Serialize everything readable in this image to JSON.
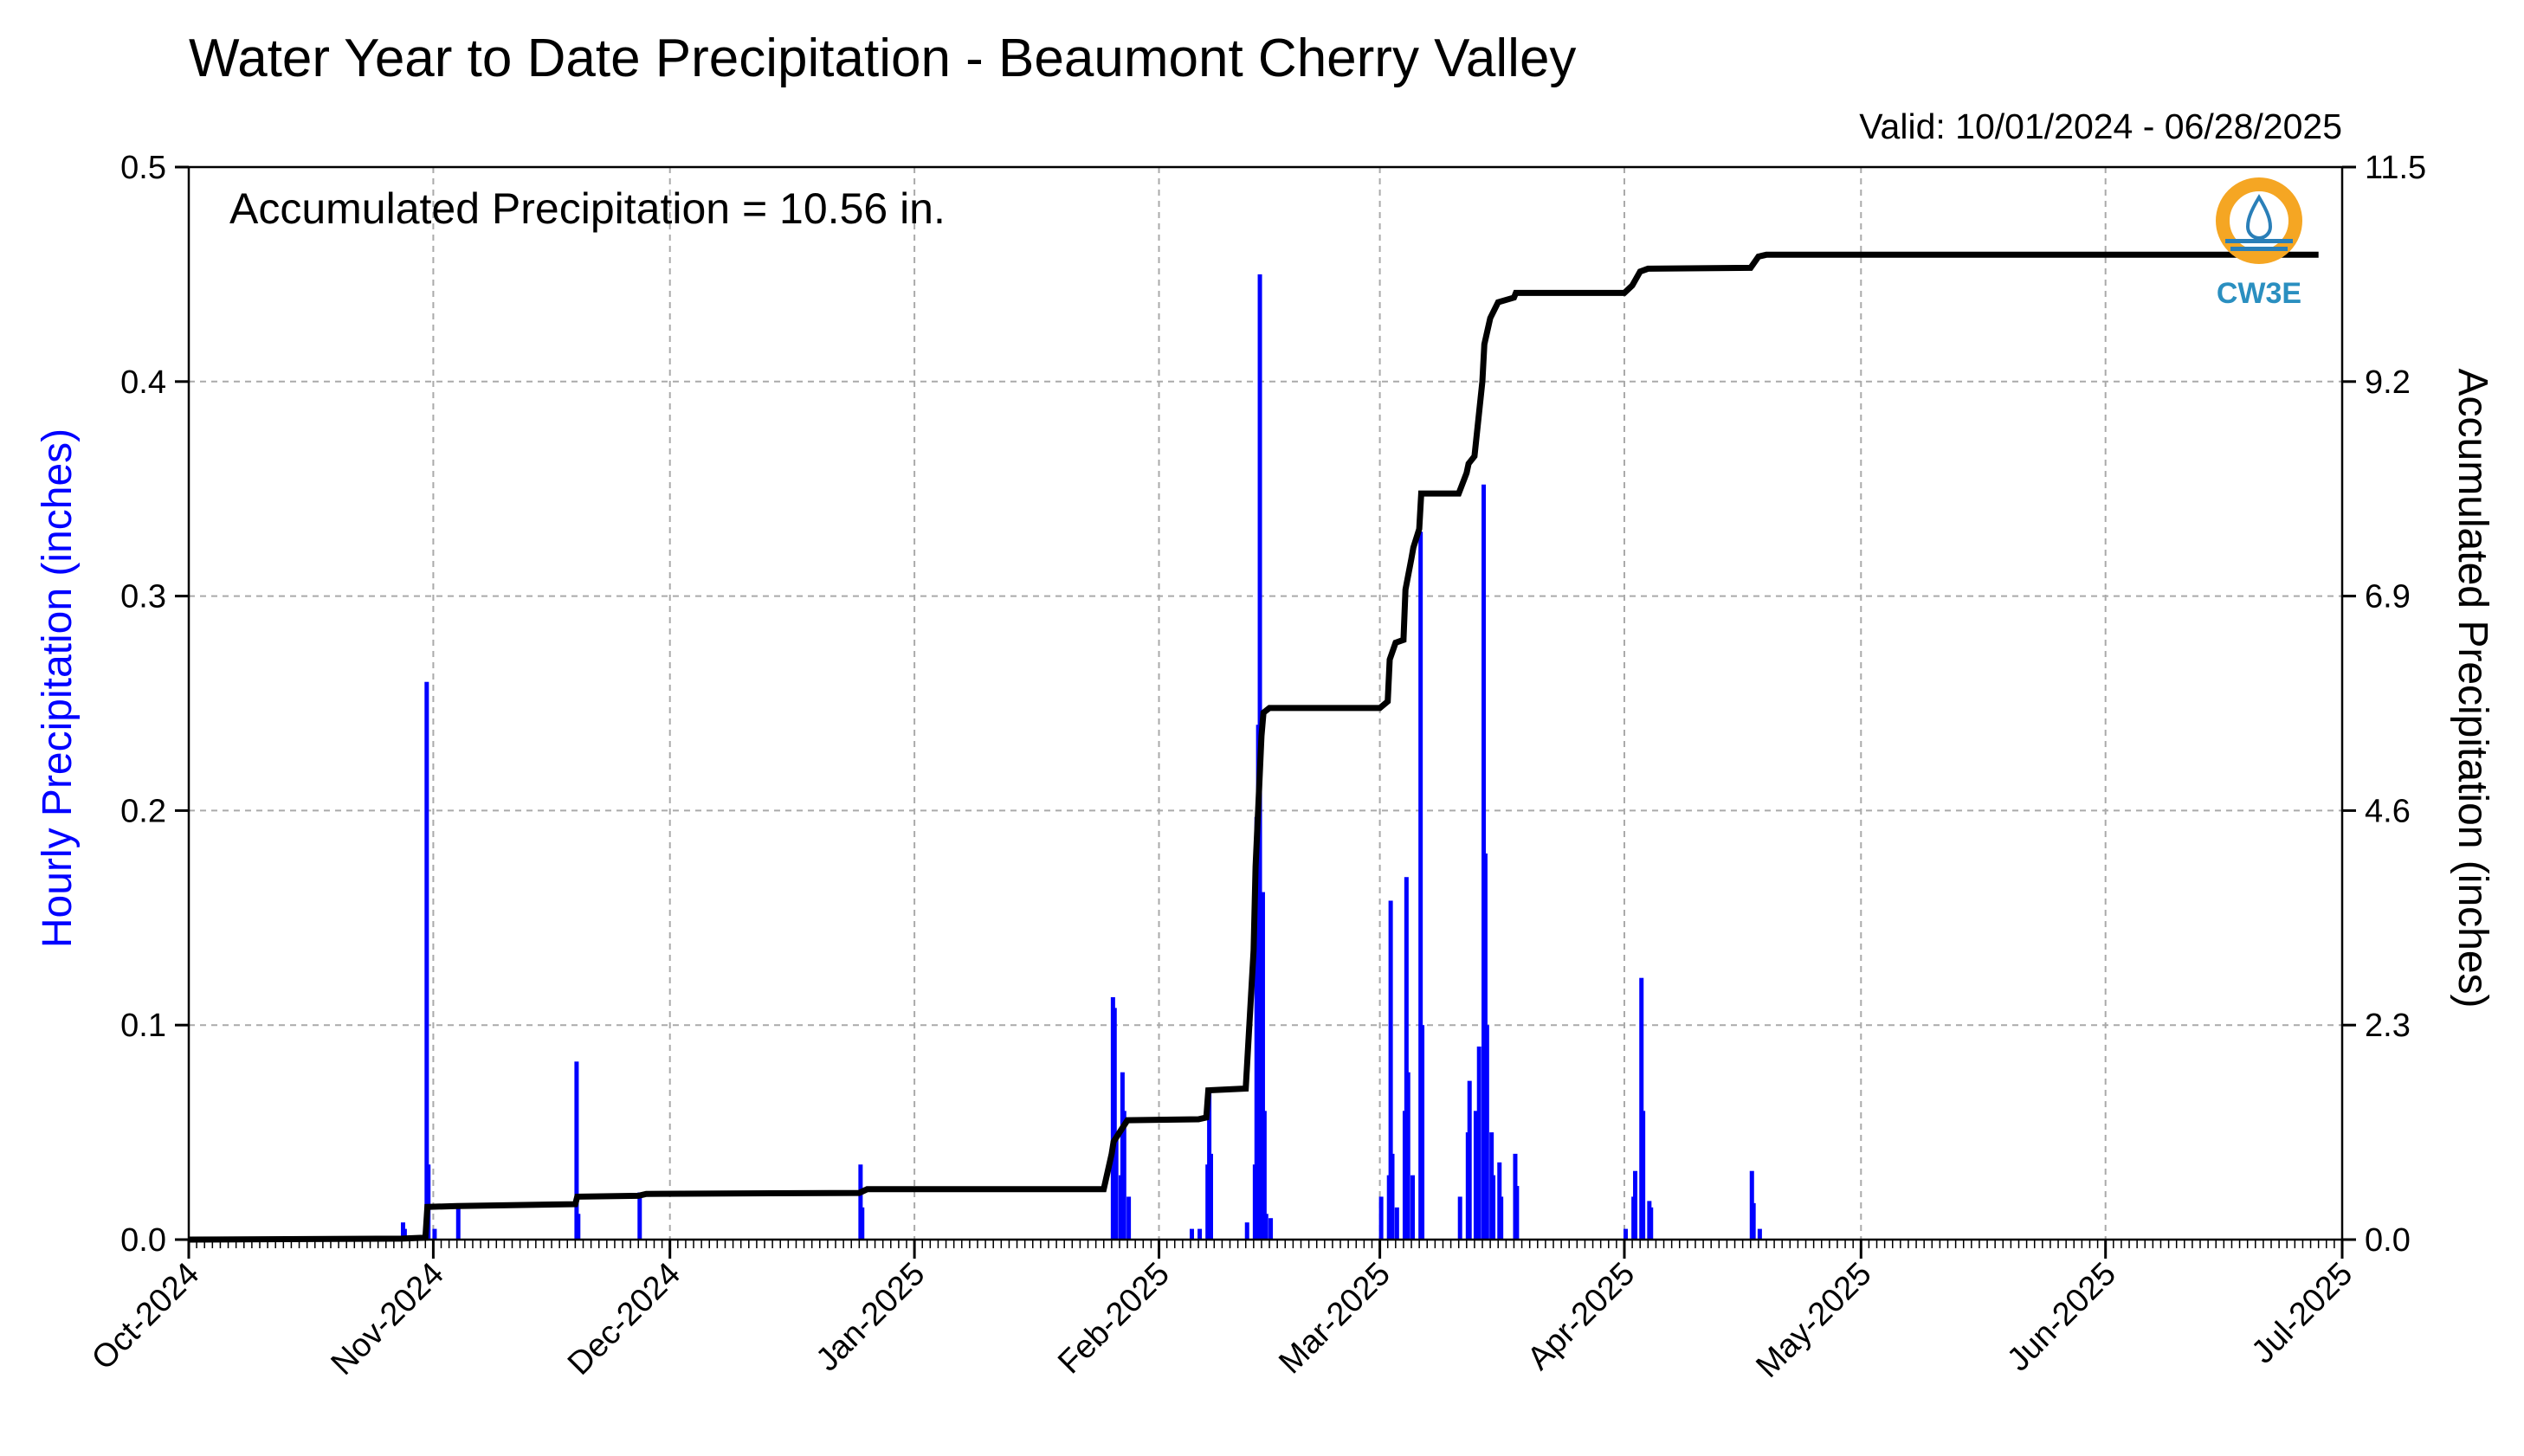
{
  "chart_data": {
    "type": "bar",
    "title": "Water Year to Date Precipitation - Beaumont Cherry Valley",
    "subtitle": "Valid: 10/01/2024 - 06/28/2025",
    "annotation": "Accumulated Precipitation = 10.56 in.",
    "ylabel": "Hourly Precipitation (inches)",
    "y2label": "Accumulated Precipitation (inches)",
    "ylabel_color": "#0000ff",
    "bar_color": "#0000ff",
    "line_color": "#000000",
    "ylim": [
      0,
      0.5
    ],
    "y2lim": [
      0,
      11.5
    ],
    "y_ticks": [
      "0.0",
      "0.1",
      "0.2",
      "0.3",
      "0.4",
      "0.5"
    ],
    "y2_ticks": [
      "0.0",
      "2.3",
      "4.6",
      "6.9",
      "9.2",
      "11.5"
    ],
    "x_tick_labels": [
      "Oct-2024",
      "Nov-2024",
      "Dec-2024",
      "Jan-2025",
      "Feb-2025",
      "Mar-2025",
      "Apr-2025",
      "May-2025",
      "Jun-2025",
      "Jul-2025"
    ],
    "xlim": [
      "2024-10-01",
      "2025-07-01"
    ],
    "grid": true,
    "series": [
      {
        "role": "hourly",
        "values": [
          [
            "2024-10-28",
            0.008
          ],
          [
            "2024-10-28",
            0.005
          ],
          [
            "2024-10-31",
            0.26
          ],
          [
            "2024-10-31",
            0.035
          ],
          [
            "2024-11-01",
            0.005
          ],
          [
            "2024-11-04",
            0.015
          ],
          [
            "2024-11-19",
            0.083
          ],
          [
            "2024-11-19",
            0.012
          ],
          [
            "2024-11-27",
            0.022
          ],
          [
            "2024-12-25",
            0.035
          ],
          [
            "2024-12-25",
            0.015
          ],
          [
            "2025-01-26",
            0.113
          ],
          [
            "2025-01-26",
            0.108
          ],
          [
            "2025-01-26",
            0.05
          ],
          [
            "2025-01-27",
            0.03
          ],
          [
            "2025-01-27",
            0.078
          ],
          [
            "2025-01-27",
            0.06
          ],
          [
            "2025-01-28",
            0.02
          ],
          [
            "2025-02-05",
            0.005
          ],
          [
            "2025-02-06",
            0.005
          ],
          [
            "2025-02-07",
            0.035
          ],
          [
            "2025-02-07",
            0.07
          ],
          [
            "2025-02-07",
            0.04
          ],
          [
            "2025-02-12",
            0.008
          ],
          [
            "2025-02-13",
            0.035
          ],
          [
            "2025-02-13",
            0.197
          ],
          [
            "2025-02-13",
            0.24
          ],
          [
            "2025-02-13",
            0.45
          ],
          [
            "2025-02-14",
            0.162
          ],
          [
            "2025-02-14",
            0.06
          ],
          [
            "2025-02-14",
            0.012
          ],
          [
            "2025-02-15",
            0.01
          ],
          [
            "2025-03-01",
            0.02
          ],
          [
            "2025-03-02",
            0.03
          ],
          [
            "2025-03-02",
            0.158
          ],
          [
            "2025-03-02",
            0.04
          ],
          [
            "2025-03-03",
            0.015
          ],
          [
            "2025-03-04",
            0.06
          ],
          [
            "2025-03-04",
            0.169
          ],
          [
            "2025-03-04",
            0.078
          ],
          [
            "2025-03-05",
            0.03
          ],
          [
            "2025-03-06",
            0.33
          ],
          [
            "2025-03-06",
            0.1
          ],
          [
            "2025-03-11",
            0.02
          ],
          [
            "2025-03-12",
            0.05
          ],
          [
            "2025-03-12",
            0.074
          ],
          [
            "2025-03-13",
            0.06
          ],
          [
            "2025-03-13",
            0.04
          ],
          [
            "2025-03-13",
            0.09
          ],
          [
            "2025-03-14",
            0.352
          ],
          [
            "2025-03-14",
            0.18
          ],
          [
            "2025-03-14",
            0.1
          ],
          [
            "2025-03-15",
            0.05
          ],
          [
            "2025-03-15",
            0.03
          ],
          [
            "2025-03-16",
            0.036
          ],
          [
            "2025-03-16",
            0.02
          ],
          [
            "2025-03-18",
            0.04
          ],
          [
            "2025-03-18",
            0.025
          ],
          [
            "2025-04-01",
            0.005
          ],
          [
            "2025-04-02",
            0.02
          ],
          [
            "2025-04-02",
            0.032
          ],
          [
            "2025-04-03",
            0.122
          ],
          [
            "2025-04-03",
            0.06
          ],
          [
            "2025-04-04",
            0.018
          ],
          [
            "2025-04-04",
            0.015
          ],
          [
            "2025-04-17",
            0.032
          ],
          [
            "2025-04-17",
            0.017
          ],
          [
            "2025-04-18",
            0.005
          ]
        ]
      },
      {
        "role": "accumulated",
        "values": [
          [
            "2024-10-01",
            0.0
          ],
          [
            "2024-10-28",
            0.01
          ],
          [
            "2024-10-31",
            0.02
          ],
          [
            "2024-10-31",
            0.35
          ],
          [
            "2024-11-04",
            0.36
          ],
          [
            "2024-11-19",
            0.38
          ],
          [
            "2024-11-19",
            0.46
          ],
          [
            "2024-11-27",
            0.47
          ],
          [
            "2024-11-28",
            0.49
          ],
          [
            "2024-12-25",
            0.5
          ],
          [
            "2024-12-26",
            0.54
          ],
          [
            "2025-01-25",
            0.54
          ],
          [
            "2025-01-26",
            0.92
          ],
          [
            "2025-01-26",
            1.05
          ],
          [
            "2025-01-27",
            1.15
          ],
          [
            "2025-01-28",
            1.28
          ],
          [
            "2025-02-06",
            1.29
          ],
          [
            "2025-02-07",
            1.31
          ],
          [
            "2025-02-07",
            1.6
          ],
          [
            "2025-02-12",
            1.62
          ],
          [
            "2025-02-13",
            3.1
          ],
          [
            "2025-02-13",
            4.0
          ],
          [
            "2025-02-14",
            5.4
          ],
          [
            "2025-02-14",
            5.65
          ],
          [
            "2025-02-15",
            5.7
          ],
          [
            "2025-03-01",
            5.7
          ],
          [
            "2025-03-02",
            5.77
          ],
          [
            "2025-03-02",
            6.22
          ],
          [
            "2025-03-03",
            6.4
          ],
          [
            "2025-03-04",
            6.43
          ],
          [
            "2025-03-04",
            6.97
          ],
          [
            "2025-03-05",
            7.3
          ],
          [
            "2025-03-05",
            7.42
          ],
          [
            "2025-03-06",
            7.62
          ],
          [
            "2025-03-06",
            8.0
          ],
          [
            "2025-03-11",
            8.0
          ],
          [
            "2025-03-12",
            8.22
          ],
          [
            "2025-03-12",
            8.32
          ],
          [
            "2025-03-13",
            8.4
          ],
          [
            "2025-03-14",
            9.2
          ],
          [
            "2025-03-14",
            9.6
          ],
          [
            "2025-03-15",
            9.88
          ],
          [
            "2025-03-16",
            10.05
          ],
          [
            "2025-03-18",
            10.1
          ],
          [
            "2025-03-18",
            10.15
          ],
          [
            "2025-04-01",
            10.15
          ],
          [
            "2025-04-02",
            10.23
          ],
          [
            "2025-04-03",
            10.38
          ],
          [
            "2025-04-04",
            10.41
          ],
          [
            "2025-04-17",
            10.42
          ],
          [
            "2025-04-18",
            10.54
          ],
          [
            "2025-04-19",
            10.56
          ],
          [
            "2025-06-28",
            10.56
          ]
        ]
      }
    ]
  },
  "logo": {
    "text": "CW3E",
    "ring_color": "#f5a623",
    "water_color": "#2a7fb8",
    "text_color": "#2a8fc0"
  }
}
